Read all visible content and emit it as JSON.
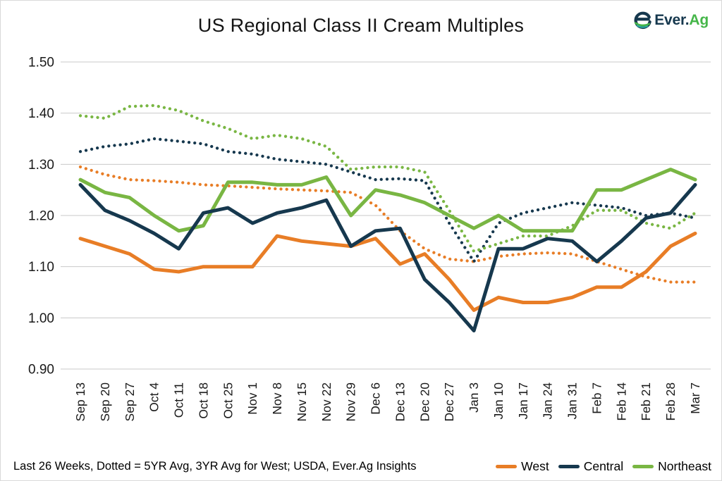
{
  "header": {
    "title": "US Regional Class II Cream Multiples",
    "logo": {
      "brand_prefix": "Ever.",
      "brand_suffix": "Ag"
    }
  },
  "footer": {
    "note": "Last 26 Weeks, Dotted = 5YR Avg, 3YR Avg for West; USDA, Ever.Ag Insights",
    "legend": [
      {
        "label": "West",
        "color": "#e87d26"
      },
      {
        "label": "Central",
        "color": "#16384e"
      },
      {
        "label": "Northeast",
        "color": "#79b643"
      }
    ]
  },
  "colors": {
    "west": "#e87d26",
    "central": "#16384e",
    "northeast": "#79b643",
    "gridline": "#c9c9c9",
    "axis_text": "#1a1a1a",
    "brand_navy": "#16384e",
    "brand_green": "#45b649"
  },
  "chart_data": {
    "type": "line",
    "title": "US Regional Class II Cream Multiples",
    "xlabel": "",
    "ylabel": "",
    "ylim": [
      0.9,
      1.5
    ],
    "y_ticks": [
      "1.50",
      "1.40",
      "1.30",
      "1.20",
      "1.10",
      "1.00",
      "0.90"
    ],
    "grid": true,
    "legend_position": "bottom-right",
    "categories": [
      "Sep 13",
      "Sep 20",
      "Sep 27",
      "Oct 4",
      "Oct 11",
      "Oct 18",
      "Oct 25",
      "Nov 1",
      "Nov 8",
      "Nov 15",
      "Nov 22",
      "Nov 29",
      "Dec 6",
      "Dec 13",
      "Dec 20",
      "Dec 27",
      "Jan 3",
      "Jan 10",
      "Jan 17",
      "Jan 24",
      "Jan 31",
      "Feb 7",
      "Feb 14",
      "Feb 21",
      "Feb 28",
      "Mar 7"
    ],
    "series": [
      {
        "name": "West 3YR Avg",
        "style": "dotted",
        "color": "#e87d26",
        "values": [
          1.295,
          1.28,
          1.27,
          1.268,
          1.265,
          1.26,
          1.258,
          1.255,
          1.252,
          1.25,
          1.248,
          1.245,
          1.22,
          1.17,
          1.135,
          1.115,
          1.11,
          1.12,
          1.125,
          1.127,
          1.125,
          1.11,
          1.095,
          1.08,
          1.07,
          1.07
        ]
      },
      {
        "name": "Central 5YR Avg",
        "style": "dotted",
        "color": "#16384e",
        "values": [
          1.325,
          1.335,
          1.34,
          1.35,
          1.345,
          1.34,
          1.325,
          1.32,
          1.31,
          1.305,
          1.3,
          1.285,
          1.27,
          1.272,
          1.268,
          1.185,
          1.11,
          1.185,
          1.205,
          1.215,
          1.225,
          1.22,
          1.215,
          1.2,
          1.205,
          1.195
        ]
      },
      {
        "name": "Northeast 5YR Avg",
        "style": "dotted",
        "color": "#79b643",
        "values": [
          1.395,
          1.39,
          1.413,
          1.415,
          1.405,
          1.385,
          1.37,
          1.35,
          1.357,
          1.35,
          1.335,
          1.29,
          1.295,
          1.295,
          1.285,
          1.21,
          1.13,
          1.145,
          1.16,
          1.16,
          1.18,
          1.21,
          1.21,
          1.185,
          1.175,
          1.205
        ]
      },
      {
        "name": "West",
        "style": "solid",
        "color": "#e87d26",
        "values": [
          1.155,
          1.14,
          1.125,
          1.095,
          1.09,
          1.1,
          1.1,
          1.1,
          1.16,
          1.15,
          1.145,
          1.14,
          1.155,
          1.105,
          1.125,
          1.075,
          1.015,
          1.04,
          1.03,
          1.03,
          1.04,
          1.06,
          1.06,
          1.09,
          1.14,
          1.165
        ]
      },
      {
        "name": "Northeast",
        "style": "solid",
        "color": "#79b643",
        "values": [
          1.27,
          1.245,
          1.235,
          1.2,
          1.17,
          1.18,
          1.265,
          1.265,
          1.26,
          1.26,
          1.275,
          1.2,
          1.25,
          1.24,
          1.225,
          1.2,
          1.175,
          1.2,
          1.17,
          1.17,
          1.17,
          1.25,
          1.25,
          1.27,
          1.29,
          1.27
        ]
      },
      {
        "name": "Central",
        "style": "solid",
        "color": "#16384e",
        "values": [
          1.26,
          1.21,
          1.19,
          1.165,
          1.135,
          1.205,
          1.215,
          1.185,
          1.205,
          1.215,
          1.23,
          1.14,
          1.17,
          1.175,
          1.075,
          1.03,
          0.975,
          1.135,
          1.135,
          1.155,
          1.15,
          1.11,
          1.15,
          1.195,
          1.205,
          1.26
        ]
      }
    ]
  }
}
